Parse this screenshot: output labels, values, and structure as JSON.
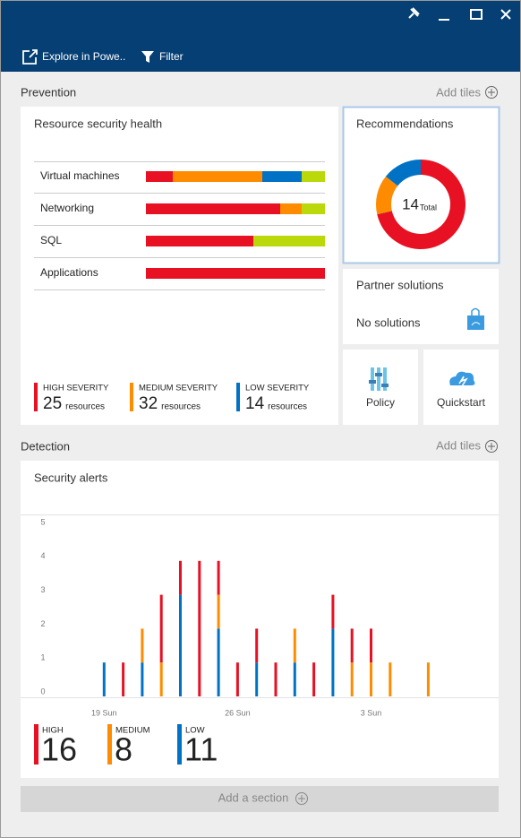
{
  "header": {
    "toolbar": [
      {
        "label": "Explore in Powe.."
      },
      {
        "label": "Filter"
      }
    ]
  },
  "prevention": {
    "title": "Prevention",
    "add_tiles": "Add tiles",
    "health_tile": {
      "title": "Resource security health",
      "chart": {
        "type": "bar",
        "orientation": "horizontal",
        "stacked": true,
        "categories": [
          "Virtual machines",
          "Networking",
          "SQL",
          "Applications"
        ],
        "series": [
          {
            "name": "HIGH SEVERITY",
            "color": "#e81123",
            "values": [
              15,
              75,
              60,
              100
            ],
            "total": 25,
            "total_unit": "resources"
          },
          {
            "name": "MEDIUM SEVERITY",
            "color": "#ff8c00",
            "values": [
              50,
              12,
              0,
              0
            ],
            "total": 32,
            "total_unit": "resources"
          },
          {
            "name": "LOW SEVERITY",
            "color": "#0072c6",
            "values": [
              22,
              0,
              0,
              0
            ],
            "total": 14,
            "total_unit": "resources"
          },
          {
            "color": "#bad80a",
            "values": [
              13,
              13,
              40,
              0
            ]
          }
        ]
      }
    },
    "recommendations_tile": {
      "title": "Recommendations",
      "chart": {
        "type": "pie",
        "donut": true,
        "values": [
          10,
          2,
          2
        ],
        "colors": [
          "#e81123",
          "#ff8c00",
          "#0072c6"
        ],
        "total": 14,
        "total_label": "Total"
      }
    },
    "partner_tile": {
      "title": "Partner solutions",
      "status": "No solutions"
    },
    "policy_tile": {
      "label": "Policy"
    },
    "quickstart_tile": {
      "label": "Quickstart"
    }
  },
  "detection": {
    "title": "Detection",
    "add_tiles": "Add tiles",
    "alerts_tile": {
      "title": "Security alerts",
      "chart": {
        "type": "bar",
        "stacked": true,
        "categories": [
          null,
          null,
          null,
          "19 Sun",
          null,
          null,
          null,
          null,
          null,
          null,
          "26 Sun",
          null,
          null,
          null,
          null,
          null,
          null,
          "3 Sun",
          null,
          null,
          null,
          null,
          null,
          null
        ],
        "ylim": [
          0,
          5
        ],
        "yticks": [
          0,
          1,
          2,
          3,
          4,
          5
        ],
        "series": [
          {
            "name": "HIGH",
            "color": "#e81123",
            "values": [
              0,
              0,
              0,
              0,
              1,
              0,
              2,
              1,
              4,
              1,
              1,
              1,
              1,
              0,
              1,
              1,
              1,
              1,
              0,
              0,
              0,
              0,
              0,
              0
            ],
            "total": 16
          },
          {
            "name": "MEDIUM",
            "color": "#ff8c00",
            "values": [
              0,
              0,
              0,
              0,
              0,
              1,
              1,
              0,
              0,
              1,
              0,
              0,
              0,
              1,
              0,
              0,
              1,
              1,
              1,
              0,
              1,
              0,
              0,
              0
            ],
            "total": 8
          },
          {
            "name": "LOW",
            "color": "#0072c6",
            "values": [
              0,
              0,
              0,
              1,
              0,
              1,
              0,
              3,
              0,
              2,
              0,
              1,
              0,
              1,
              0,
              2,
              0,
              0,
              0,
              0,
              0,
              0,
              0,
              0
            ],
            "total": 11
          }
        ]
      }
    }
  },
  "add_section": "Add a section"
}
